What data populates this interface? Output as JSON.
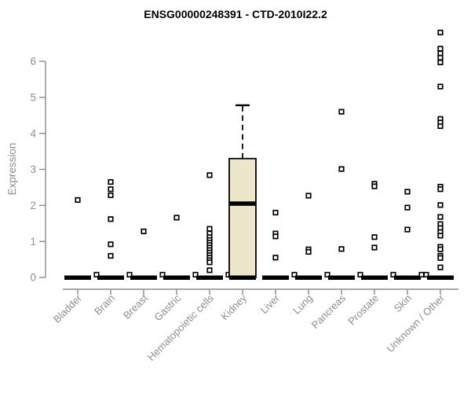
{
  "chart_data": {
    "type": "boxplot",
    "title": "ENSG00000248391 - CTD-2010I22.2",
    "ylabel": "Expression",
    "xlabel": "",
    "ylim": [
      0,
      6.9
    ],
    "yticks": [
      0,
      1,
      2,
      3,
      4,
      5,
      6
    ],
    "grid": false,
    "legend_position": "none",
    "colors": {
      "box_fill": "#ece7cb",
      "box_stroke": "#000000",
      "axis": "#8c8c8c",
      "tick_label": "#8e8e8e",
      "title": "#000000",
      "outlier_fill": "#ffffff",
      "outlier_stroke": "#000000"
    },
    "categories": [
      "Bladder",
      "Brain",
      "Breast",
      "Gastric",
      "Hematopoietic cells",
      "Kidney",
      "Liver",
      "Lung",
      "Pancreas",
      "Prostate",
      "Skin",
      "Unknown / Other"
    ],
    "boxes": [
      {
        "category": "Bladder",
        "median": 0,
        "q1": 0,
        "q3": 0,
        "whisker_low": 0,
        "whisker_high": 0,
        "outliers": [
          2.15
        ]
      },
      {
        "category": "Brain",
        "median": 0,
        "q1": 0,
        "q3": 0,
        "whisker_low": 0,
        "whisker_high": 0,
        "outliers": [
          2.65,
          2.45,
          2.28,
          1.62,
          0.92,
          0.6
        ]
      },
      {
        "category": "Breast",
        "median": 0,
        "q1": 0,
        "q3": 0,
        "whisker_low": 0,
        "whisker_high": 0,
        "outliers": [
          1.28
        ]
      },
      {
        "category": "Gastric",
        "median": 0,
        "q1": 0,
        "q3": 0,
        "whisker_low": 0,
        "whisker_high": 0,
        "outliers": [
          1.66
        ]
      },
      {
        "category": "Hematopoietic cells",
        "median": 0,
        "q1": 0,
        "q3": 0,
        "whisker_low": 0,
        "whisker_high": 0,
        "outliers": [
          2.84,
          1.35,
          1.22,
          1.12,
          1.04,
          0.97,
          0.9,
          0.83,
          0.76,
          0.69,
          0.62,
          0.55,
          0.48,
          0.42,
          0.2
        ]
      },
      {
        "category": "Kidney",
        "median": 2.05,
        "q1": 0,
        "q3": 3.3,
        "whisker_low": 0,
        "whisker_high": 4.78,
        "outliers": []
      },
      {
        "category": "Liver",
        "median": 0,
        "q1": 0,
        "q3": 0,
        "whisker_low": 0,
        "whisker_high": 0,
        "outliers": [
          1.8,
          1.22,
          1.14,
          0.55
        ]
      },
      {
        "category": "Lung",
        "median": 0,
        "q1": 0,
        "q3": 0,
        "whisker_low": 0,
        "whisker_high": 0,
        "outliers": [
          2.27,
          0.78,
          0.71
        ]
      },
      {
        "category": "Pancreas",
        "median": 0,
        "q1": 0,
        "q3": 0,
        "whisker_low": 0,
        "whisker_high": 0,
        "outliers": [
          4.6,
          3.01,
          0.79
        ]
      },
      {
        "category": "Prostate",
        "median": 0,
        "q1": 0,
        "q3": 0,
        "whisker_low": 0,
        "whisker_high": 0,
        "outliers": [
          2.6,
          2.53,
          1.12,
          0.83
        ]
      },
      {
        "category": "Skin",
        "median": 0,
        "q1": 0,
        "q3": 0,
        "whisker_low": 0,
        "whisker_high": 0,
        "outliers": [
          2.38,
          1.94,
          1.33
        ]
      },
      {
        "category": "Unknown / Other",
        "median": 0,
        "q1": 0,
        "q3": 0,
        "whisker_low": 0,
        "whisker_high": 0,
        "outliers": [
          6.8,
          6.35,
          6.22,
          6.1,
          5.97,
          5.3,
          4.4,
          4.3,
          4.2,
          2.52,
          2.45,
          2.01,
          1.68,
          1.48,
          1.37,
          1.26,
          1.16,
          0.85,
          0.78,
          0.6,
          0.54,
          0.28
        ]
      }
    ]
  }
}
